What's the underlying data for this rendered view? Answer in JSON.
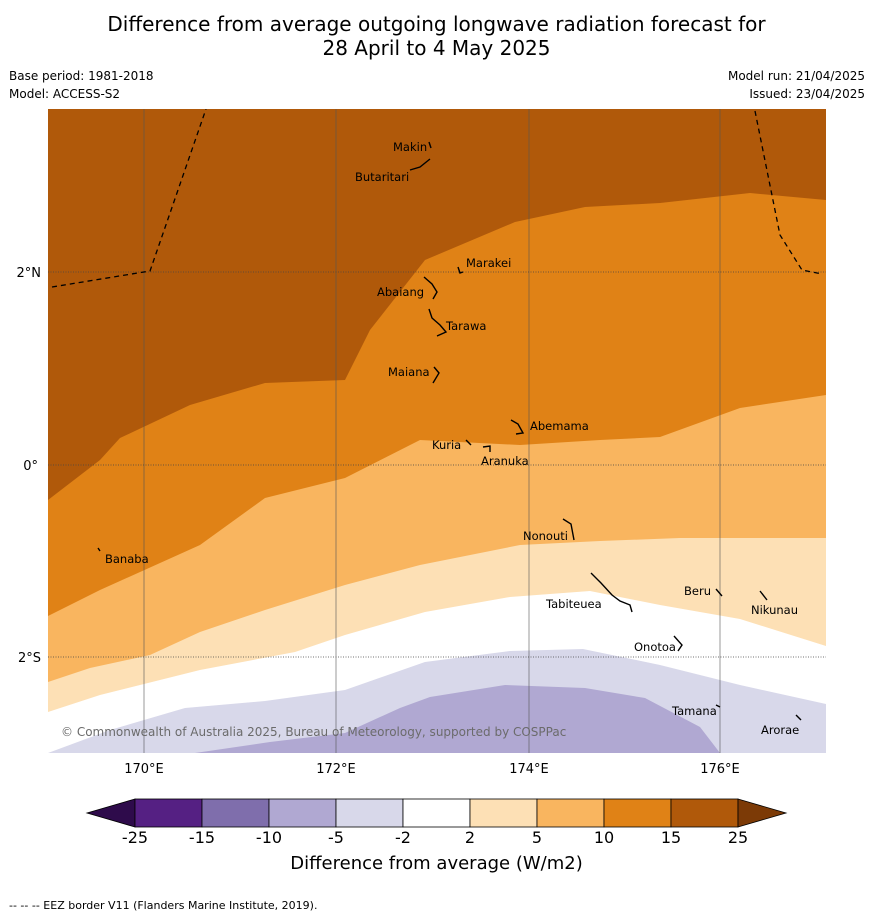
{
  "title": {
    "line1": "Difference from average outgoing longwave radiation forecast for",
    "line2": "28 April to 4 May 2025"
  },
  "meta": {
    "base_period": "Base period: 1981-2018",
    "model": "Model: ACCESS-S2",
    "model_run": "Model run: 21/04/2025",
    "issued": "Issued: 23/04/2025"
  },
  "map": {
    "region": "Kiribati - Gilbert Islands",
    "longitude_labels": [
      "170°E",
      "172°E",
      "174°E",
      "176°E"
    ],
    "latitude_labels": [
      "2°N",
      "0°",
      "2°S"
    ],
    "island_labels": [
      "Makin",
      "Butaritari",
      "Marakei",
      "Abaiang",
      "Tarawa",
      "Maiana",
      "Abemama",
      "Kuria",
      "Aranuka",
      "Nonouti",
      "Banaba",
      "Tabiteuea",
      "Beru",
      "Nikunau",
      "Onotoa",
      "Tamana",
      "Arorae"
    ],
    "copyright": "© Commonwealth of Australia 2025, Bureau of Meteorology, supported by COSPPac",
    "eez_line_style": "dashed"
  },
  "colorbar": {
    "title": "Difference from average (W/m2)",
    "tick_labels": [
      "-25",
      "-15",
      "-10",
      "-5",
      "-2",
      "2",
      "5",
      "10",
      "15",
      "25"
    ],
    "colors": [
      "#2e0b4b",
      "#552083",
      "#7f6eac",
      "#b0a8d2",
      "#d8d8ea",
      "#ffffff",
      "#fde0b5",
      "#f9b55f",
      "#e08216",
      "#b0590a",
      "#7c3a06"
    ]
  },
  "footnote": "--  --  -- EEZ border V11 (Flanders Marine Institute, 2019)."
}
